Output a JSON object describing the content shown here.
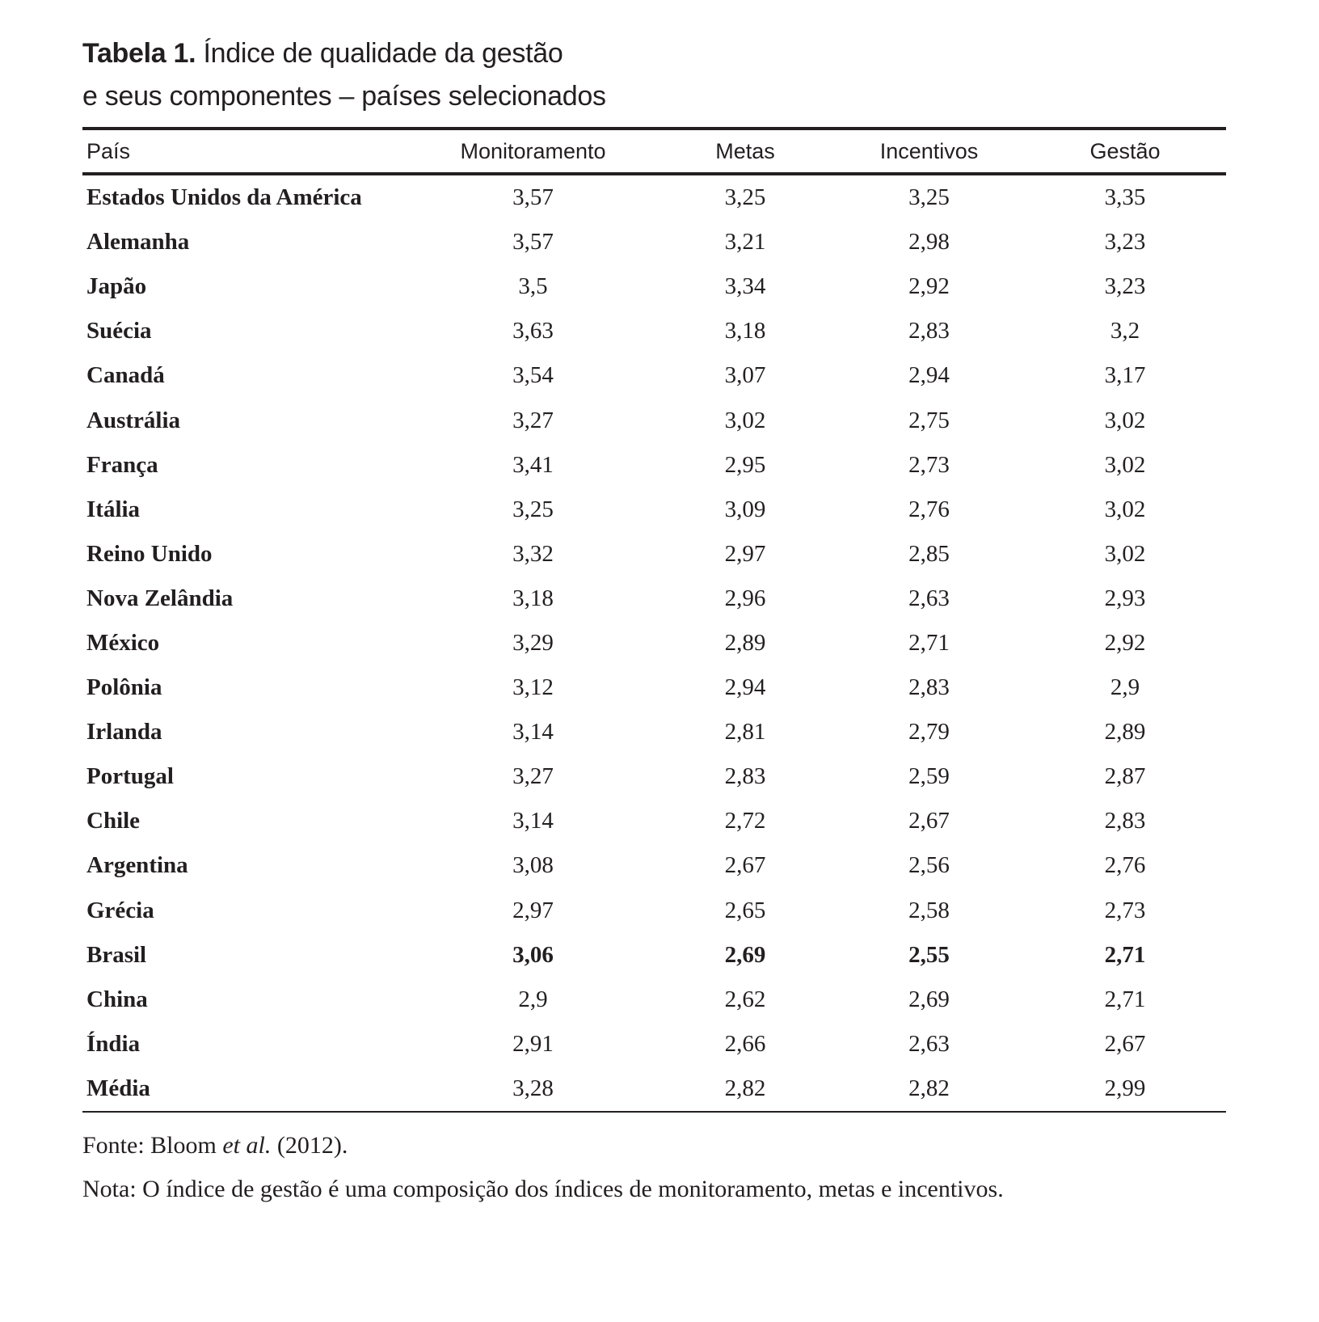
{
  "title": {
    "label": "Tabela 1.",
    "line1": "Índice de qualidade da gestão",
    "line2": "e seus componentes – países selecionados"
  },
  "columns": [
    "País",
    "Monitoramento",
    "Metas",
    "Incentivos",
    "Gestão"
  ],
  "rows": [
    [
      "Estados Unidos da América",
      "3,57",
      "3,25",
      "3,25",
      "3,35"
    ],
    [
      "Alemanha",
      "3,57",
      "3,21",
      "2,98",
      "3,23"
    ],
    [
      "Japão",
      "3,5",
      "3,34",
      "2,92",
      "3,23"
    ],
    [
      "Suécia",
      "3,63",
      "3,18",
      "2,83",
      "3,2"
    ],
    [
      "Canadá",
      "3,54",
      "3,07",
      "2,94",
      "3,17"
    ],
    [
      "Austrália",
      "3,27",
      "3,02",
      "2,75",
      "3,02"
    ],
    [
      "França",
      "3,41",
      "2,95",
      "2,73",
      "3,02"
    ],
    [
      "Itália",
      "3,25",
      "3,09",
      "2,76",
      "3,02"
    ],
    [
      "Reino Unido",
      "3,32",
      "2,97",
      "2,85",
      "3,02"
    ],
    [
      "Nova Zelândia",
      "3,18",
      "2,96",
      "2,63",
      "2,93"
    ],
    [
      "México",
      "3,29",
      "2,89",
      "2,71",
      "2,92"
    ],
    [
      "Polônia",
      "3,12",
      "2,94",
      "2,83",
      "2,9"
    ],
    [
      "Irlanda",
      "3,14",
      "2,81",
      "2,79",
      "2,89"
    ],
    [
      "Portugal",
      "3,27",
      "2,83",
      "2,59",
      "2,87"
    ],
    [
      "Chile",
      "3,14",
      "2,72",
      "2,67",
      "2,83"
    ],
    [
      "Argentina",
      "3,08",
      "2,67",
      "2,56",
      "2,76"
    ],
    [
      "Grécia",
      "2,97",
      "2,65",
      "2,58",
      "2,73"
    ],
    [
      "Brasil",
      "3,06",
      "2,69",
      "2,55",
      "2,71"
    ],
    [
      "China",
      "2,9",
      "2,62",
      "2,69",
      "2,71"
    ],
    [
      "Índia",
      "2,91",
      "2,66",
      "2,63",
      "2,67"
    ],
    [
      "Média",
      "3,28",
      "2,82",
      "2,82",
      "2,99"
    ]
  ],
  "highlight_row": "Brasil",
  "source": {
    "prefix": "Fonte: Bloom ",
    "italic": "et al.",
    "suffix": " (2012)."
  },
  "note": "Nota: O índice de gestão é uma composição dos índices de monitoramento, metas e incentivos."
}
